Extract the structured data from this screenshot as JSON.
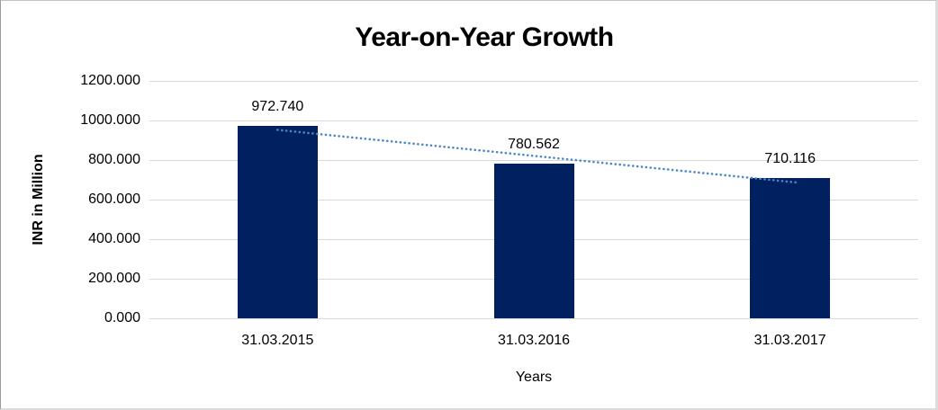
{
  "chart_data": {
    "type": "bar",
    "title": "Year-on-Year Growth",
    "xlabel": "Years",
    "ylabel": "INR in Million",
    "categories": [
      "31.03.2015",
      "31.03.2016",
      "31.03.2017"
    ],
    "values": [
      972.74,
      780.562,
      710.116
    ],
    "data_labels": [
      "972.740",
      "780.562",
      "710.116"
    ],
    "ylim": [
      0,
      1200
    ],
    "ytick_step": 200,
    "ytick_labels": [
      "0.000",
      "200.000",
      "400.000",
      "600.000",
      "800.000",
      "1000.000",
      "1200.000"
    ],
    "grid": true,
    "legend": "none",
    "trendline": {
      "type": "linear",
      "style": "dotted"
    },
    "colors": {
      "bar": "#002060",
      "trendline": "#4a86c8",
      "gridline": "#d9d9d9",
      "text": "#000000"
    }
  }
}
